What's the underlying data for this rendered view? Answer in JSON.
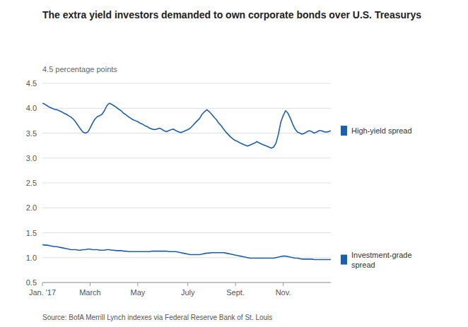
{
  "chart_data": {
    "type": "line",
    "title": "The extra yield investors demanded to own corporate bonds over U.S. Treasurys",
    "ylabel": "4.5 percentage points",
    "source": "Source: BofA Merrill Lynch indexes via Federal Reserve Bank of St. Louis",
    "categories": [
      "Jan. '17",
      null,
      null,
      null,
      null,
      null,
      null,
      null,
      null,
      null,
      null,
      null,
      null,
      null,
      null,
      null,
      null,
      null,
      null,
      null,
      "March",
      null,
      null,
      null,
      null,
      null,
      null,
      null,
      null,
      null,
      null,
      null,
      null,
      null,
      null,
      null,
      null,
      null,
      null,
      null,
      "May",
      null,
      null,
      null,
      null,
      null,
      null,
      null,
      null,
      null,
      null,
      null,
      null,
      null,
      null,
      null,
      null,
      null,
      null,
      null,
      null,
      "July",
      null,
      null,
      null,
      null,
      null,
      null,
      null,
      null,
      null,
      null,
      null,
      null,
      null,
      null,
      null,
      null,
      null,
      null,
      null,
      "Sept.",
      null,
      null,
      null,
      null,
      null,
      null,
      null,
      null,
      null,
      null,
      null,
      null,
      null,
      null,
      null,
      null,
      null,
      null,
      null,
      "Nov.",
      null,
      null,
      null,
      null,
      null,
      null,
      null,
      null,
      null,
      null,
      null,
      null,
      null,
      null,
      null,
      null,
      null,
      null,
      null,
      null
    ],
    "series": [
      {
        "name": "High-yield spread",
        "color": "#1f5fa6",
        "values": [
          4.1,
          4.08,
          4.05,
          4.02,
          4.0,
          3.98,
          3.97,
          3.95,
          3.93,
          3.9,
          3.88,
          3.85,
          3.82,
          3.78,
          3.72,
          3.65,
          3.58,
          3.52,
          3.5,
          3.52,
          3.6,
          3.7,
          3.78,
          3.83,
          3.85,
          3.88,
          3.95,
          4.05,
          4.1,
          4.08,
          4.05,
          4.02,
          3.98,
          3.95,
          3.9,
          3.87,
          3.83,
          3.8,
          3.77,
          3.75,
          3.73,
          3.7,
          3.68,
          3.65,
          3.63,
          3.6,
          3.58,
          3.57,
          3.58,
          3.6,
          3.58,
          3.55,
          3.53,
          3.55,
          3.57,
          3.58,
          3.55,
          3.53,
          3.51,
          3.53,
          3.55,
          3.57,
          3.6,
          3.65,
          3.7,
          3.75,
          3.8,
          3.88,
          3.93,
          3.97,
          3.93,
          3.88,
          3.82,
          3.77,
          3.7,
          3.65,
          3.58,
          3.52,
          3.47,
          3.42,
          3.38,
          3.35,
          3.33,
          3.3,
          3.28,
          3.26,
          3.24,
          3.26,
          3.28,
          3.3,
          3.33,
          3.3,
          3.28,
          3.26,
          3.24,
          3.22,
          3.2,
          3.22,
          3.3,
          3.48,
          3.72,
          3.85,
          3.95,
          3.9,
          3.8,
          3.68,
          3.58,
          3.52,
          3.5,
          3.48,
          3.5,
          3.53,
          3.55,
          3.53,
          3.5,
          3.52,
          3.55,
          3.55,
          3.53,
          3.52,
          3.53,
          3.55
        ]
      },
      {
        "name": "Investment-grade\nspread",
        "color": "#1f5fa6",
        "values": [
          1.26,
          1.25,
          1.25,
          1.24,
          1.23,
          1.22,
          1.22,
          1.21,
          1.2,
          1.19,
          1.18,
          1.17,
          1.16,
          1.16,
          1.16,
          1.15,
          1.15,
          1.16,
          1.16,
          1.17,
          1.17,
          1.16,
          1.16,
          1.16,
          1.15,
          1.15,
          1.15,
          1.16,
          1.16,
          1.15,
          1.15,
          1.14,
          1.14,
          1.14,
          1.13,
          1.13,
          1.12,
          1.12,
          1.12,
          1.12,
          1.12,
          1.12,
          1.12,
          1.12,
          1.12,
          1.12,
          1.13,
          1.13,
          1.13,
          1.13,
          1.13,
          1.13,
          1.13,
          1.12,
          1.12,
          1.12,
          1.12,
          1.11,
          1.1,
          1.09,
          1.08,
          1.07,
          1.06,
          1.06,
          1.06,
          1.06,
          1.06,
          1.07,
          1.08,
          1.09,
          1.09,
          1.1,
          1.1,
          1.1,
          1.1,
          1.1,
          1.1,
          1.09,
          1.08,
          1.07,
          1.06,
          1.05,
          1.04,
          1.03,
          1.02,
          1.01,
          1.0,
          0.99,
          0.99,
          0.99,
          0.99,
          0.99,
          0.99,
          0.99,
          0.99,
          0.99,
          0.99,
          0.99,
          1.0,
          1.01,
          1.02,
          1.03,
          1.03,
          1.02,
          1.01,
          1.0,
          0.99,
          0.99,
          0.98,
          0.97,
          0.97,
          0.97,
          0.97,
          0.97,
          0.96,
          0.96,
          0.96,
          0.96,
          0.96,
          0.96,
          0.96,
          0.96
        ]
      }
    ],
    "ylim": [
      0.5,
      4.5
    ],
    "yticks": [
      0.5,
      {
        "value": 1,
        "label": "1.0"
      },
      1.5,
      {
        "value": 2,
        "label": "2.0"
      },
      2.5,
      {
        "value": 3,
        "label": "3.0"
      },
      3.5,
      {
        "value": 4,
        "label": "4.0"
      },
      4.5
    ],
    "grid": "y",
    "legend": "right"
  }
}
